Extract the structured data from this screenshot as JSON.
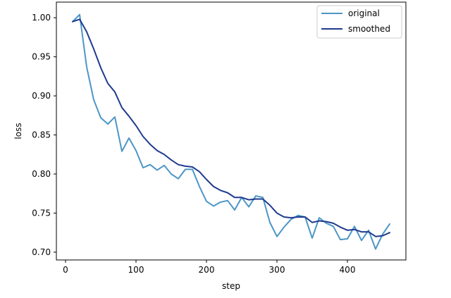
{
  "chart_data": {
    "type": "line",
    "xlabel": "step",
    "ylabel": "loss",
    "xlim": [
      -13,
      483
    ],
    "ylim": [
      0.69,
      1.02
    ],
    "xticks": [
      0,
      100,
      200,
      300,
      400
    ],
    "yticks": [
      "0.70",
      "0.75",
      "0.80",
      "0.85",
      "0.90",
      "0.95",
      "1.00"
    ],
    "grid": false,
    "legend_position": "top-right",
    "x": [
      10,
      20,
      30,
      40,
      50,
      60,
      70,
      80,
      90,
      100,
      110,
      120,
      130,
      140,
      150,
      160,
      170,
      180,
      190,
      200,
      210,
      220,
      230,
      240,
      250,
      260,
      270,
      280,
      290,
      300,
      310,
      320,
      330,
      340,
      350,
      360,
      370,
      380,
      390,
      400,
      410,
      420,
      430,
      440,
      450,
      460
    ],
    "series": [
      {
        "name": "original",
        "color": "#4c96c6",
        "values": [
          0.995,
          1.004,
          0.937,
          0.895,
          0.872,
          0.864,
          0.873,
          0.829,
          0.846,
          0.83,
          0.808,
          0.812,
          0.805,
          0.811,
          0.8,
          0.794,
          0.806,
          0.806,
          0.784,
          0.765,
          0.759,
          0.764,
          0.766,
          0.754,
          0.77,
          0.758,
          0.772,
          0.77,
          0.738,
          0.72,
          0.732,
          0.742,
          0.747,
          0.745,
          0.718,
          0.744,
          0.737,
          0.733,
          0.716,
          0.717,
          0.733,
          0.715,
          0.728,
          0.704,
          0.723,
          0.736
        ]
      },
      {
        "name": "smoothed",
        "color": "#1f3b8f",
        "values": [
          0.995,
          0.998,
          0.982,
          0.96,
          0.936,
          0.916,
          0.905,
          0.885,
          0.874,
          0.862,
          0.848,
          0.838,
          0.83,
          0.825,
          0.818,
          0.812,
          0.81,
          0.809,
          0.803,
          0.793,
          0.784,
          0.779,
          0.776,
          0.77,
          0.77,
          0.767,
          0.768,
          0.768,
          0.76,
          0.75,
          0.745,
          0.744,
          0.745,
          0.745,
          0.738,
          0.74,
          0.739,
          0.737,
          0.732,
          0.728,
          0.729,
          0.726,
          0.726,
          0.72,
          0.721,
          0.725
        ]
      }
    ]
  }
}
